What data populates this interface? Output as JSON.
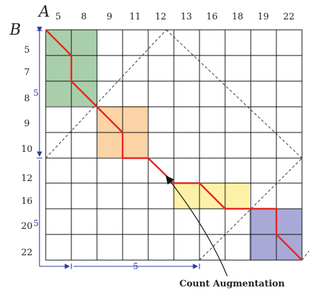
{
  "axis_a_label": "A",
  "axis_b_label": "B",
  "column_labels": [
    "5",
    "8",
    "9",
    "11",
    "12",
    "13",
    "16",
    "18",
    "19",
    "22"
  ],
  "row_labels": [
    "5",
    "7",
    "8",
    "9",
    "10",
    "12",
    "16",
    "20",
    "22"
  ],
  "dimension_labels": {
    "left_upper": "5",
    "left_lower": "5",
    "bottom_left": "5"
  },
  "annotation": "Count Augmentation",
  "block_colors": {
    "green": "#a9cfaa",
    "orange": "#fcd3a6",
    "yellow": "#fcf1a7",
    "purple": "#a9a9d8",
    "path": "#e8231e",
    "dimension": "#2a3a9a"
  }
}
